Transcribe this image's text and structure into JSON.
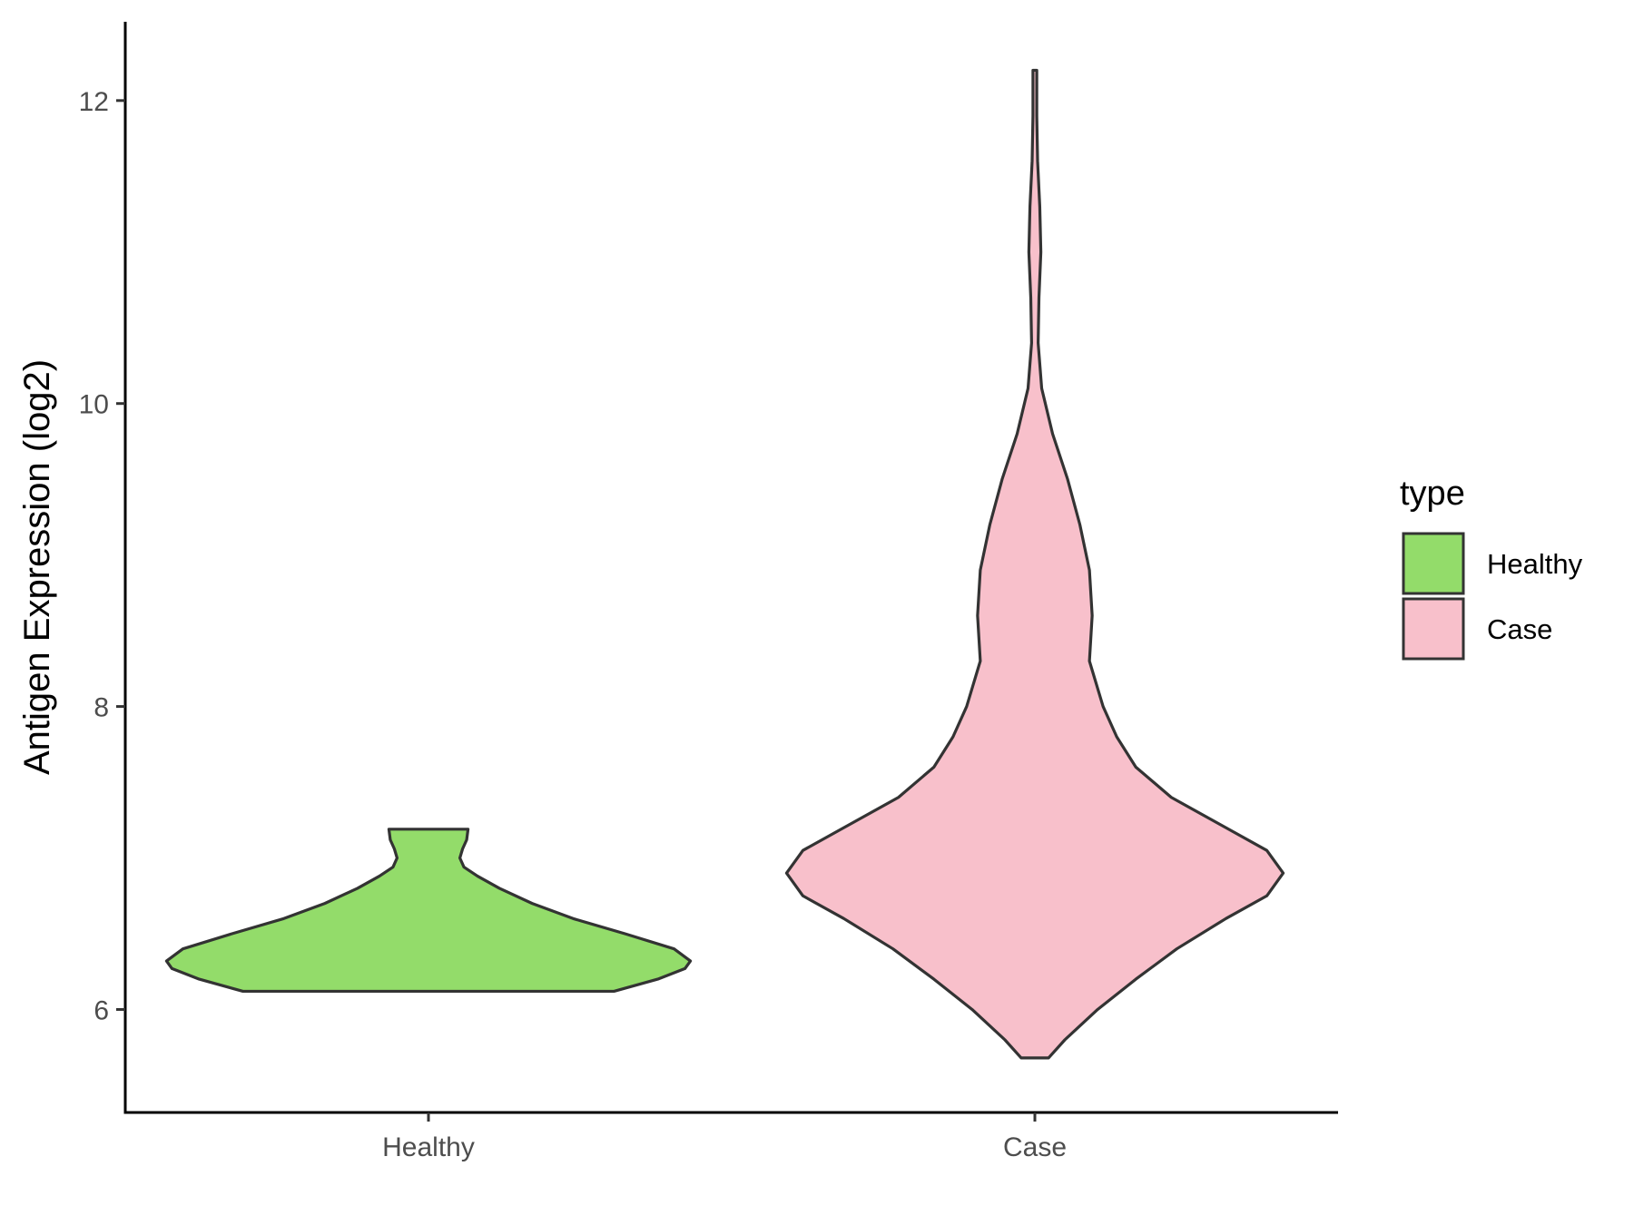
{
  "chart_data": {
    "type": "violin",
    "title": "",
    "xlabel": "",
    "ylabel": "Antigen Expression (log2)",
    "ylim": [
      5.32,
      12.52
    ],
    "yticks": [
      6,
      8,
      10,
      12
    ],
    "grid": false,
    "categories": [
      "Healthy",
      "Case"
    ],
    "legend": {
      "title": "type",
      "position": "right",
      "entries": [
        {
          "label": "Healthy",
          "color": "#93dc6a"
        },
        {
          "label": "Case",
          "color": "#f8c0cb"
        }
      ]
    },
    "series": [
      {
        "category": "Healthy",
        "color": "#93dc6a",
        "y_min": 6.12,
        "y_max": 7.19,
        "density_profile": [
          [
            6.12,
            0.68
          ],
          [
            6.2,
            0.84
          ],
          [
            6.27,
            0.94
          ],
          [
            6.32,
            0.96
          ],
          [
            6.4,
            0.9
          ],
          [
            6.5,
            0.72
          ],
          [
            6.6,
            0.53
          ],
          [
            6.7,
            0.38
          ],
          [
            6.8,
            0.26
          ],
          [
            6.88,
            0.18
          ],
          [
            6.94,
            0.13
          ],
          [
            7.0,
            0.115
          ],
          [
            7.06,
            0.125
          ],
          [
            7.12,
            0.14
          ],
          [
            7.19,
            0.145
          ]
        ]
      },
      {
        "category": "Case",
        "color": "#f8c0cb",
        "y_min": 5.68,
        "y_max": 12.2,
        "density_profile": [
          [
            5.68,
            0.05
          ],
          [
            5.8,
            0.11
          ],
          [
            6.0,
            0.23
          ],
          [
            6.2,
            0.37
          ],
          [
            6.4,
            0.52
          ],
          [
            6.6,
            0.7
          ],
          [
            6.75,
            0.85
          ],
          [
            6.9,
            0.91
          ],
          [
            7.05,
            0.85
          ],
          [
            7.2,
            0.7
          ],
          [
            7.4,
            0.5
          ],
          [
            7.6,
            0.37
          ],
          [
            7.8,
            0.3
          ],
          [
            8.0,
            0.25
          ],
          [
            8.3,
            0.2
          ],
          [
            8.6,
            0.21
          ],
          [
            8.9,
            0.2
          ],
          [
            9.2,
            0.165
          ],
          [
            9.5,
            0.12
          ],
          [
            9.8,
            0.065
          ],
          [
            10.1,
            0.025
          ],
          [
            10.4,
            0.012
          ],
          [
            10.7,
            0.015
          ],
          [
            11.0,
            0.022
          ],
          [
            11.3,
            0.018
          ],
          [
            11.6,
            0.01
          ],
          [
            11.9,
            0.007
          ],
          [
            12.2,
            0.007
          ]
        ]
      }
    ]
  }
}
